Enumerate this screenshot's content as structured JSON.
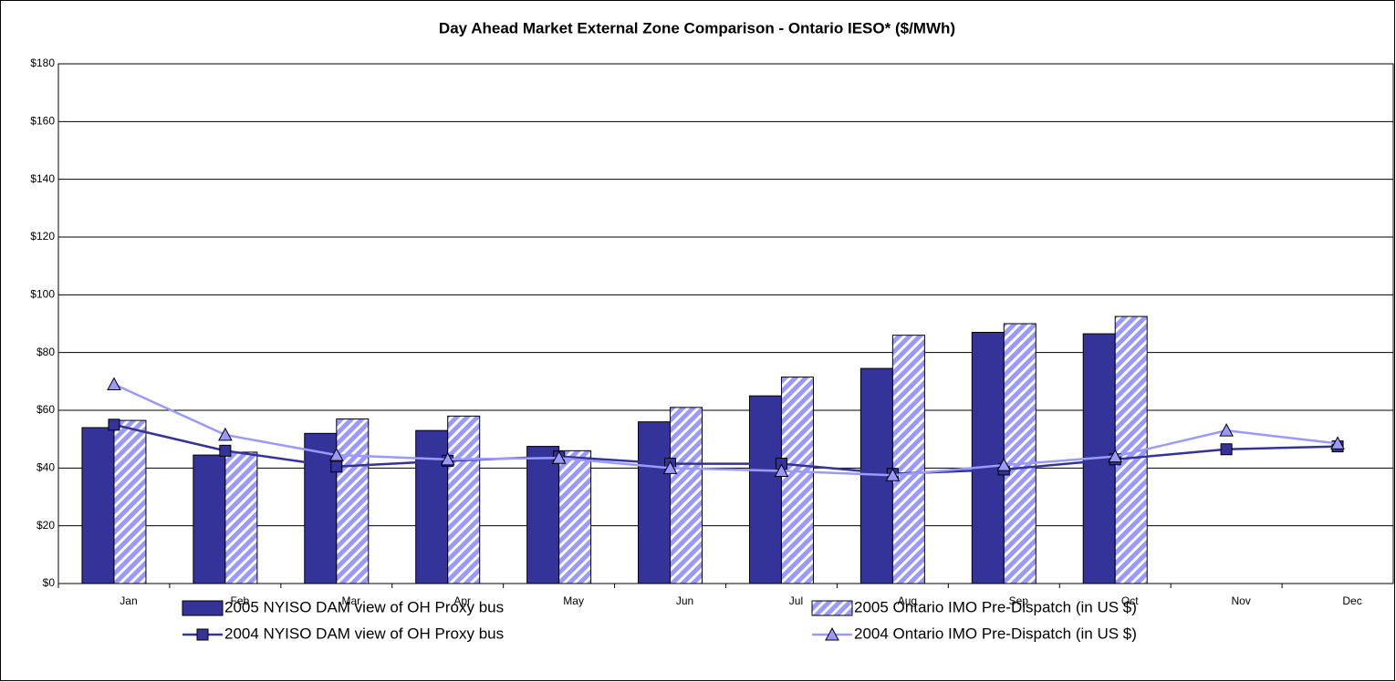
{
  "chart_data": {
    "type": "bar",
    "title": "Day Ahead Market External Zone Comparison - Ontario IESO* ($/MWh)",
    "categories": [
      "Jan",
      "Feb",
      "Mar",
      "Apr",
      "May",
      "Jun",
      "Jul",
      "Aug",
      "Sep",
      "Oct",
      "Nov",
      "Dec"
    ],
    "series": [
      {
        "name": "2005 NYISO DAM view of OH Proxy bus",
        "type": "bar",
        "color": "#333399",
        "values": [
          54,
          44.5,
          52,
          53,
          47.5,
          56,
          65,
          74.5,
          87,
          86.5,
          null,
          null
        ]
      },
      {
        "name": "2005 Ontario IMO Pre-Dispatch (in US $)",
        "type": "bar",
        "pattern": "hatch",
        "color": "#9999ff",
        "values": [
          56.5,
          45.5,
          57,
          58,
          46,
          61,
          71.5,
          86,
          90,
          92.5,
          null,
          null
        ]
      },
      {
        "name": "2004 NYISO DAM view of OH Proxy bus",
        "type": "line",
        "marker": "square",
        "color": "#333399",
        "values": [
          55,
          46,
          40.5,
          42.5,
          44,
          41.5,
          41.5,
          38,
          39.5,
          43,
          46.5,
          47.5
        ]
      },
      {
        "name": "2004 Ontario IMO Pre-Dispatch (in US $)",
        "type": "line",
        "marker": "triangle",
        "color": "#9999ff",
        "values": [
          69,
          51.5,
          44.5,
          43,
          43.5,
          40,
          39,
          37.5,
          41,
          44,
          53,
          48.5
        ]
      }
    ],
    "ylim": [
      0,
      180
    ],
    "yticks": [
      {
        "value": 0,
        "label": "$0"
      },
      {
        "value": 20,
        "label": "$20"
      },
      {
        "value": 40,
        "label": "$40"
      },
      {
        "value": 60,
        "label": "$60"
      },
      {
        "value": 80,
        "label": "$80"
      },
      {
        "value": 100,
        "label": "$100"
      },
      {
        "value": 120,
        "label": "$120"
      },
      {
        "value": 140,
        "label": "$140"
      },
      {
        "value": 160,
        "label": "$160"
      },
      {
        "value": 180,
        "label": "$180"
      }
    ],
    "grid": true
  }
}
